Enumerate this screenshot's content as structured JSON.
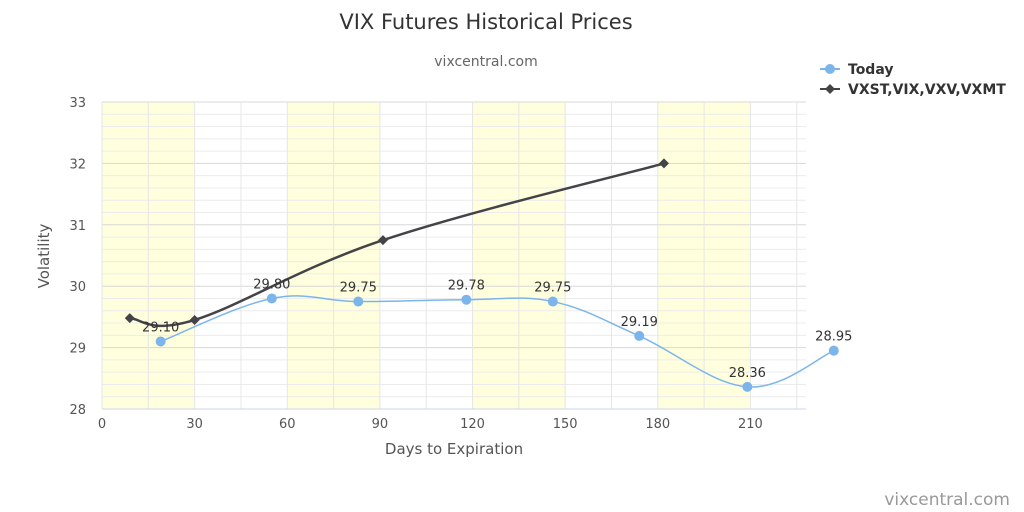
{
  "chart_data": {
    "type": "line",
    "title": "VIX Futures Historical Prices",
    "subtitle": "vixcentral.com",
    "xlabel": "Days to Expiration",
    "ylabel": "Volatility",
    "xlim": [
      0,
      228
    ],
    "ylim": [
      28,
      33
    ],
    "x_ticks": [
      "0",
      "30",
      "60",
      "90",
      "120",
      "150",
      "180",
      "210"
    ],
    "y_ticks": [
      "28",
      "29",
      "30",
      "31",
      "32",
      "33"
    ],
    "grid": true,
    "shaded_bands": [
      [
        0,
        30
      ],
      [
        60,
        90
      ],
      [
        120,
        150
      ],
      [
        180,
        210
      ]
    ],
    "legend_position": "top-right",
    "series": [
      {
        "name": "Today",
        "color": "#7cb5ec",
        "marker": "circle",
        "points": [
          {
            "x": 19,
            "y": 29.1,
            "label": "29.10"
          },
          {
            "x": 55,
            "y": 29.8,
            "label": "29.80"
          },
          {
            "x": 83,
            "y": 29.75,
            "label": "29.75"
          },
          {
            "x": 118,
            "y": 29.78,
            "label": "29.78"
          },
          {
            "x": 146,
            "y": 29.75,
            "label": "29.75"
          },
          {
            "x": 174,
            "y": 29.19,
            "label": "29.19"
          },
          {
            "x": 209,
            "y": 28.36,
            "label": "28.36"
          },
          {
            "x": 237,
            "y": 28.95,
            "label": "28.95"
          }
        ]
      },
      {
        "name": "VXST,VIX,VXV,VXMT",
        "color": "#434348",
        "marker": "diamond",
        "points": [
          {
            "x": 9,
            "y": 29.48
          },
          {
            "x": 30,
            "y": 29.45
          },
          {
            "x": 91,
            "y": 30.75
          },
          {
            "x": 182,
            "y": 32.0
          }
        ]
      }
    ]
  },
  "credit": "vixcentral.com"
}
